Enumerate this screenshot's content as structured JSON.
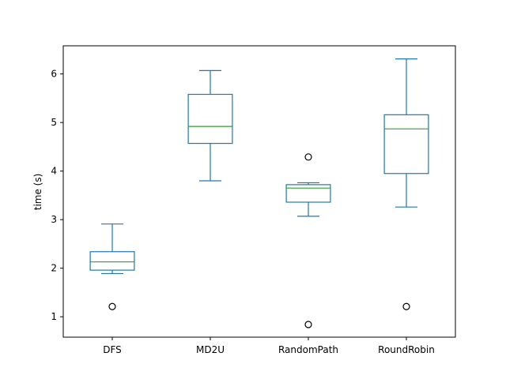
{
  "chart_data": {
    "type": "box",
    "title": "",
    "xlabel": "",
    "ylabel": "time (s)",
    "ylim": [
      0.58,
      6.58
    ],
    "yticks": [
      1,
      2,
      3,
      4,
      5,
      6
    ],
    "grid": false,
    "colors": {
      "box": "#1f77b4",
      "median": "#2ca02c",
      "outlier": "#000000",
      "axis": "#000000"
    },
    "categories": [
      "DFS",
      "MD2U",
      "RandomPath",
      "RoundRobin"
    ],
    "boxes": [
      {
        "name": "DFS",
        "whisker_low": 1.89,
        "q1": 1.96,
        "median": 2.13,
        "q3": 2.34,
        "whisker_high": 2.91,
        "outliers": [
          1.21
        ]
      },
      {
        "name": "MD2U",
        "whisker_low": 3.8,
        "q1": 4.57,
        "median": 4.92,
        "q3": 5.58,
        "whisker_high": 6.07,
        "outliers": []
      },
      {
        "name": "RandomPath",
        "whisker_low": 3.07,
        "q1": 3.36,
        "median": 3.65,
        "q3": 3.72,
        "whisker_high": 3.76,
        "outliers": [
          4.29,
          0.84
        ]
      },
      {
        "name": "RoundRobin",
        "whisker_low": 3.26,
        "q1": 3.95,
        "median": 4.87,
        "q3": 5.16,
        "whisker_high": 6.31,
        "outliers": [
          1.21
        ]
      }
    ]
  }
}
